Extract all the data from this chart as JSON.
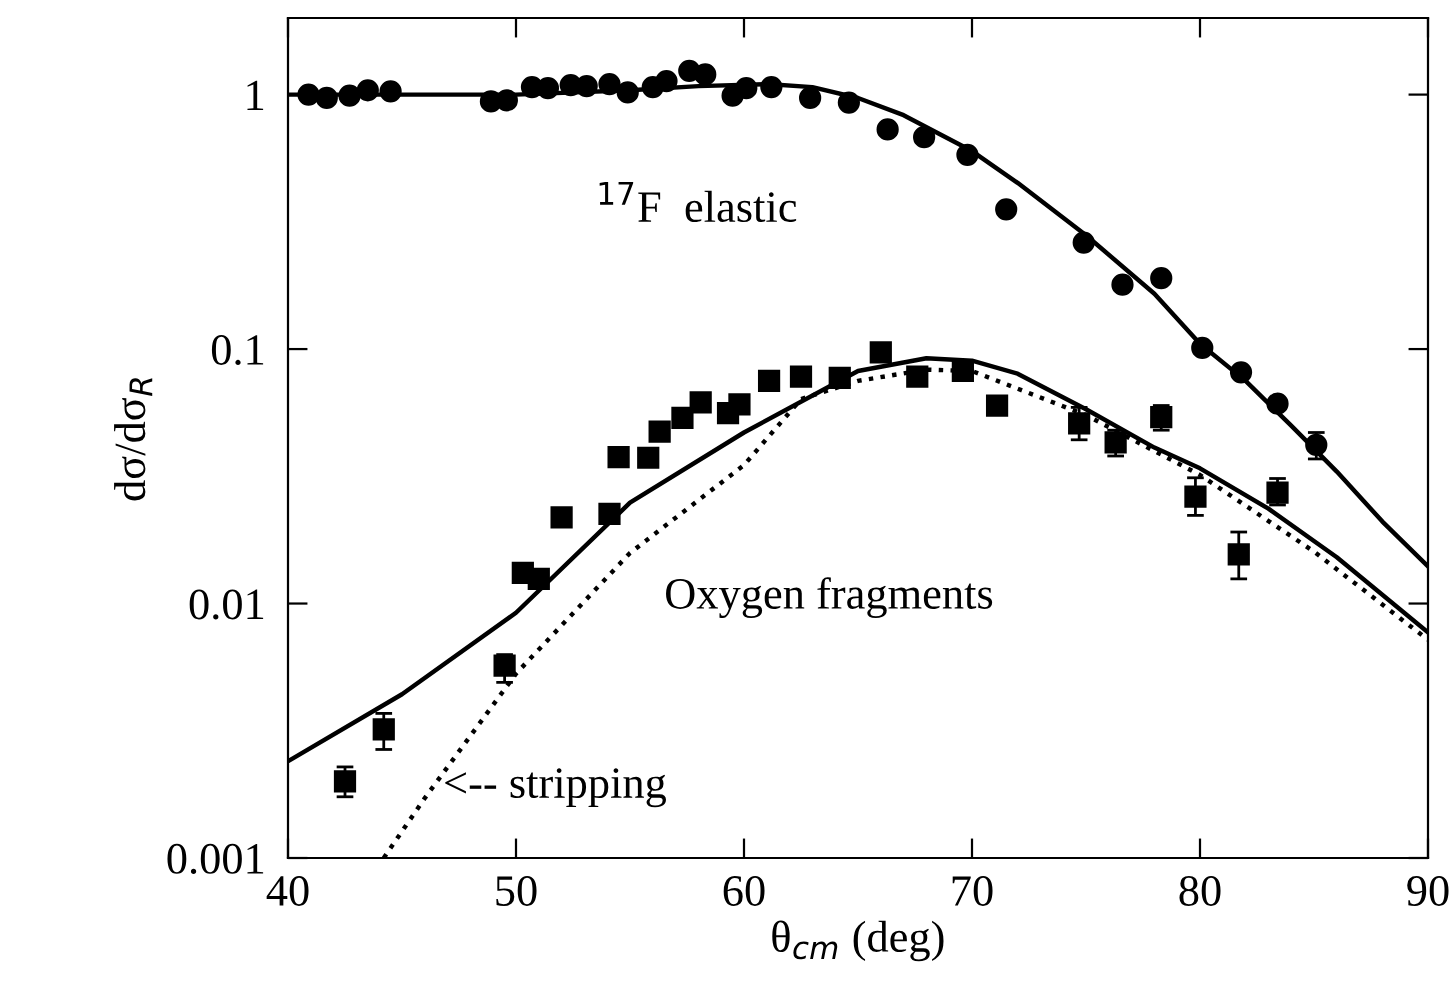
{
  "chart_data": {
    "type": "scatter",
    "xlabel": "θ$_{cm}$ (deg)",
    "ylabel": "dσ/dσ$_{R}$",
    "log": "y",
    "xlim": [
      40,
      90
    ],
    "ylim": [
      0.001,
      2
    ],
    "xticks": [
      40,
      50,
      60,
      70,
      80,
      90
    ],
    "yticks": [
      {
        "value": 0.001,
        "label": "0.001"
      },
      {
        "value": 0.01,
        "label": "0.01"
      },
      {
        "value": 0.1,
        "label": "0.1"
      },
      {
        "value": 1,
        "label": "1"
      }
    ],
    "grid": false,
    "legend": false,
    "series": [
      {
        "marker": "circle",
        "color": "#000000",
        "x": [
          40.9,
          41.7,
          42.7,
          43.5,
          44.5,
          48.9,
          49.6,
          50.7,
          51.4,
          52.4,
          53.1,
          54.1,
          54.9,
          56.0,
          56.6,
          57.6,
          58.3,
          59.5,
          60.1,
          61.2,
          62.9,
          64.6,
          66.3,
          67.9,
          69.8,
          71.5,
          74.9,
          76.6,
          78.3,
          80.1,
          81.8,
          83.4,
          85.1
        ],
        "values": [
          1.0,
          0.97,
          0.99,
          1.04,
          1.03,
          0.94,
          0.95,
          1.07,
          1.06,
          1.09,
          1.08,
          1.1,
          1.02,
          1.07,
          1.13,
          1.24,
          1.2,
          0.99,
          1.06,
          1.07,
          0.97,
          0.93,
          0.73,
          0.68,
          0.58,
          0.354,
          0.262,
          0.179,
          0.19,
          0.101,
          0.081,
          0.061,
          0.042
        ],
        "errors": [
          null,
          null,
          null,
          null,
          null,
          null,
          null,
          null,
          null,
          null,
          null,
          null,
          null,
          null,
          null,
          null,
          null,
          null,
          null,
          null,
          null,
          null,
          null,
          null,
          null,
          null,
          null,
          null,
          null,
          null,
          null,
          null,
          [
            0.037,
            0.047
          ]
        ]
      },
      {
        "marker": "square",
        "color": "#000000",
        "x": [
          42.5,
          44.2,
          49.5,
          50.3,
          51.0,
          52.0,
          54.1,
          54.5,
          55.8,
          56.3,
          57.3,
          58.1,
          59.3,
          59.8,
          61.1,
          62.5,
          64.2,
          66.0,
          67.6,
          69.6,
          71.1,
          74.7,
          76.3,
          78.3,
          79.8,
          81.7,
          83.4
        ],
        "values": [
          0.002,
          0.0032,
          0.0057,
          0.0132,
          0.0125,
          0.0218,
          0.0225,
          0.0376,
          0.0374,
          0.0474,
          0.0537,
          0.0617,
          0.056,
          0.0606,
          0.075,
          0.078,
          0.077,
          0.097,
          0.078,
          0.082,
          0.06,
          0.051,
          0.043,
          0.054,
          0.0263,
          0.0156,
          0.0273
        ],
        "errors": [
          [
            0.00174,
            0.00228
          ],
          [
            0.00267,
            0.0037
          ],
          [
            0.0049,
            0.0063
          ],
          null,
          null,
          null,
          null,
          null,
          null,
          null,
          null,
          null,
          null,
          null,
          null,
          null,
          null,
          null,
          null,
          null,
          null,
          [
            0.044,
            0.059
          ],
          [
            0.038,
            0.048
          ],
          [
            0.048,
            0.06
          ],
          [
            0.0222,
            0.0312
          ],
          [
            0.0125,
            0.0191
          ],
          [
            0.0244,
            0.031
          ]
        ]
      },
      {
        "type": "line",
        "line_style": "solid",
        "color": "#000000",
        "x": [
          40,
          45,
          50,
          55,
          58,
          61,
          63,
          65,
          67,
          70,
          72,
          75,
          78,
          80,
          82,
          84,
          86,
          88,
          90
        ],
        "values": [
          1.0,
          1.0,
          1.0,
          1.04,
          1.08,
          1.1,
          1.07,
          0.97,
          0.83,
          0.6,
          0.45,
          0.28,
          0.165,
          0.105,
          0.075,
          0.05,
          0.033,
          0.021,
          0.014
        ]
      },
      {
        "type": "line",
        "line_style": "solid",
        "color": "#000000",
        "x": [
          40,
          45,
          50,
          55,
          60,
          65,
          68,
          70,
          72,
          75,
          78,
          80,
          83,
          86,
          90
        ],
        "values": [
          0.0024,
          0.0044,
          0.0092,
          0.0249,
          0.047,
          0.082,
          0.092,
          0.09,
          0.08,
          0.058,
          0.041,
          0.034,
          0.0236,
          0.0152,
          0.0077
        ]
      },
      {
        "type": "line",
        "line_style": "dotted",
        "color": "#000000",
        "x": [
          44.2,
          46,
          50,
          55,
          60,
          62.5,
          65,
          68,
          70,
          75,
          80,
          85,
          90
        ],
        "values": [
          0.001,
          0.00172,
          0.0053,
          0.0158,
          0.035,
          0.0636,
          0.075,
          0.083,
          0.082,
          0.055,
          0.032,
          0.016,
          0.0072
        ]
      }
    ],
    "annotations": [
      "$^{17}$F  elastic",
      "Oxygen fragments",
      {
        "text": "<-- stripping",
        "x": 46.8,
        "y": 0.0019
      }
    ]
  }
}
